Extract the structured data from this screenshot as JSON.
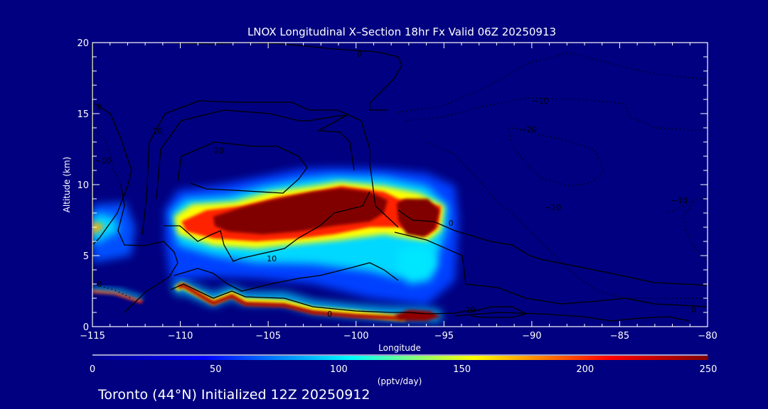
{
  "chart_data": {
    "type": "heatmap",
    "title": "LNOX Longitudinal X–Section 18hr  Fx Valid 06Z 20250913",
    "xlabel": "Longitude",
    "ylabel": "Altitude (km)",
    "xlim": [
      -115,
      -80
    ],
    "ylim": [
      0,
      20
    ],
    "x_ticks": [
      -115,
      -110,
      -105,
      -100,
      -95,
      -90,
      -85,
      -80
    ],
    "x_tick_labels": [
      "−115",
      "−110",
      "−105",
      "−100",
      "−95",
      "−90",
      "−85",
      "−80"
    ],
    "y_ticks": [
      0,
      5,
      10,
      15,
      20
    ],
    "y_tick_labels": [
      "0",
      "5",
      "10",
      "15",
      "20"
    ],
    "colorbar": {
      "label": "(pptv/day)",
      "range": [
        0,
        250
      ],
      "ticks": [
        0,
        50,
        100,
        150,
        200,
        250
      ],
      "tick_labels": [
        "0",
        "50",
        "100",
        "150",
        "200",
        "250"
      ],
      "colors": [
        "#00008f",
        "#0000ff",
        "#00ffff",
        "#ffff00",
        "#ff0000",
        "#800000"
      ]
    },
    "filled_field_regions": [
      {
        "name": "upper-band-core",
        "lon_range": [
          -108,
          -97
        ],
        "alt_range": [
          6.5,
          9.5
        ],
        "value": 250
      },
      {
        "name": "east-cell-core",
        "lon_range": [
          -97.5,
          -95
        ],
        "alt_range": [
          6.3,
          8.8
        ],
        "value": 250
      },
      {
        "name": "west-band-edge",
        "lon_range": [
          -111,
          -108
        ],
        "alt_range": [
          6.5,
          8.0
        ],
        "value": 180
      },
      {
        "name": "far-west-cell",
        "lon_range": [
          -115,
          -113
        ],
        "alt_range": [
          5.5,
          8.5
        ],
        "value": 160
      },
      {
        "name": "surface-layer",
        "lon_range": [
          -110,
          -95
        ],
        "alt_range": [
          0.5,
          3.0
        ],
        "value": 250
      }
    ],
    "contours": {
      "levels": [
        -20,
        -10,
        0,
        10,
        20
      ],
      "labels": [
        {
          "text": "0",
          "lon": -99.8,
          "alt": 19.2
        },
        {
          "text": "0",
          "lon": -114.6,
          "alt": 15.5
        },
        {
          "text": "10",
          "lon": -111.3,
          "alt": 13.8
        },
        {
          "text": "20",
          "lon": -107.8,
          "alt": 12.4
        },
        {
          "text": "−10",
          "lon": -114.4,
          "alt": 11.7
        },
        {
          "text": "−10",
          "lon": -89.5,
          "alt": 15.9
        },
        {
          "text": "−20",
          "lon": -90.2,
          "alt": 13.9
        },
        {
          "text": "10",
          "lon": -104.8,
          "alt": 4.8
        },
        {
          "text": "0",
          "lon": -114.6,
          "alt": 3.0
        },
        {
          "text": "0",
          "lon": -94.6,
          "alt": 7.3
        },
        {
          "text": "−10",
          "lon": -88.8,
          "alt": 8.4
        },
        {
          "text": "−10",
          "lon": -81.6,
          "alt": 8.9
        },
        {
          "text": "10",
          "lon": -93.5,
          "alt": 1.2
        },
        {
          "text": "0",
          "lon": -80.8,
          "alt": 1.2
        },
        {
          "text": "0",
          "lon": -101.5,
          "alt": 0.9
        }
      ]
    }
  },
  "footer": {
    "station": "Toronto (44°N) Initialized 12Z 20250912"
  }
}
